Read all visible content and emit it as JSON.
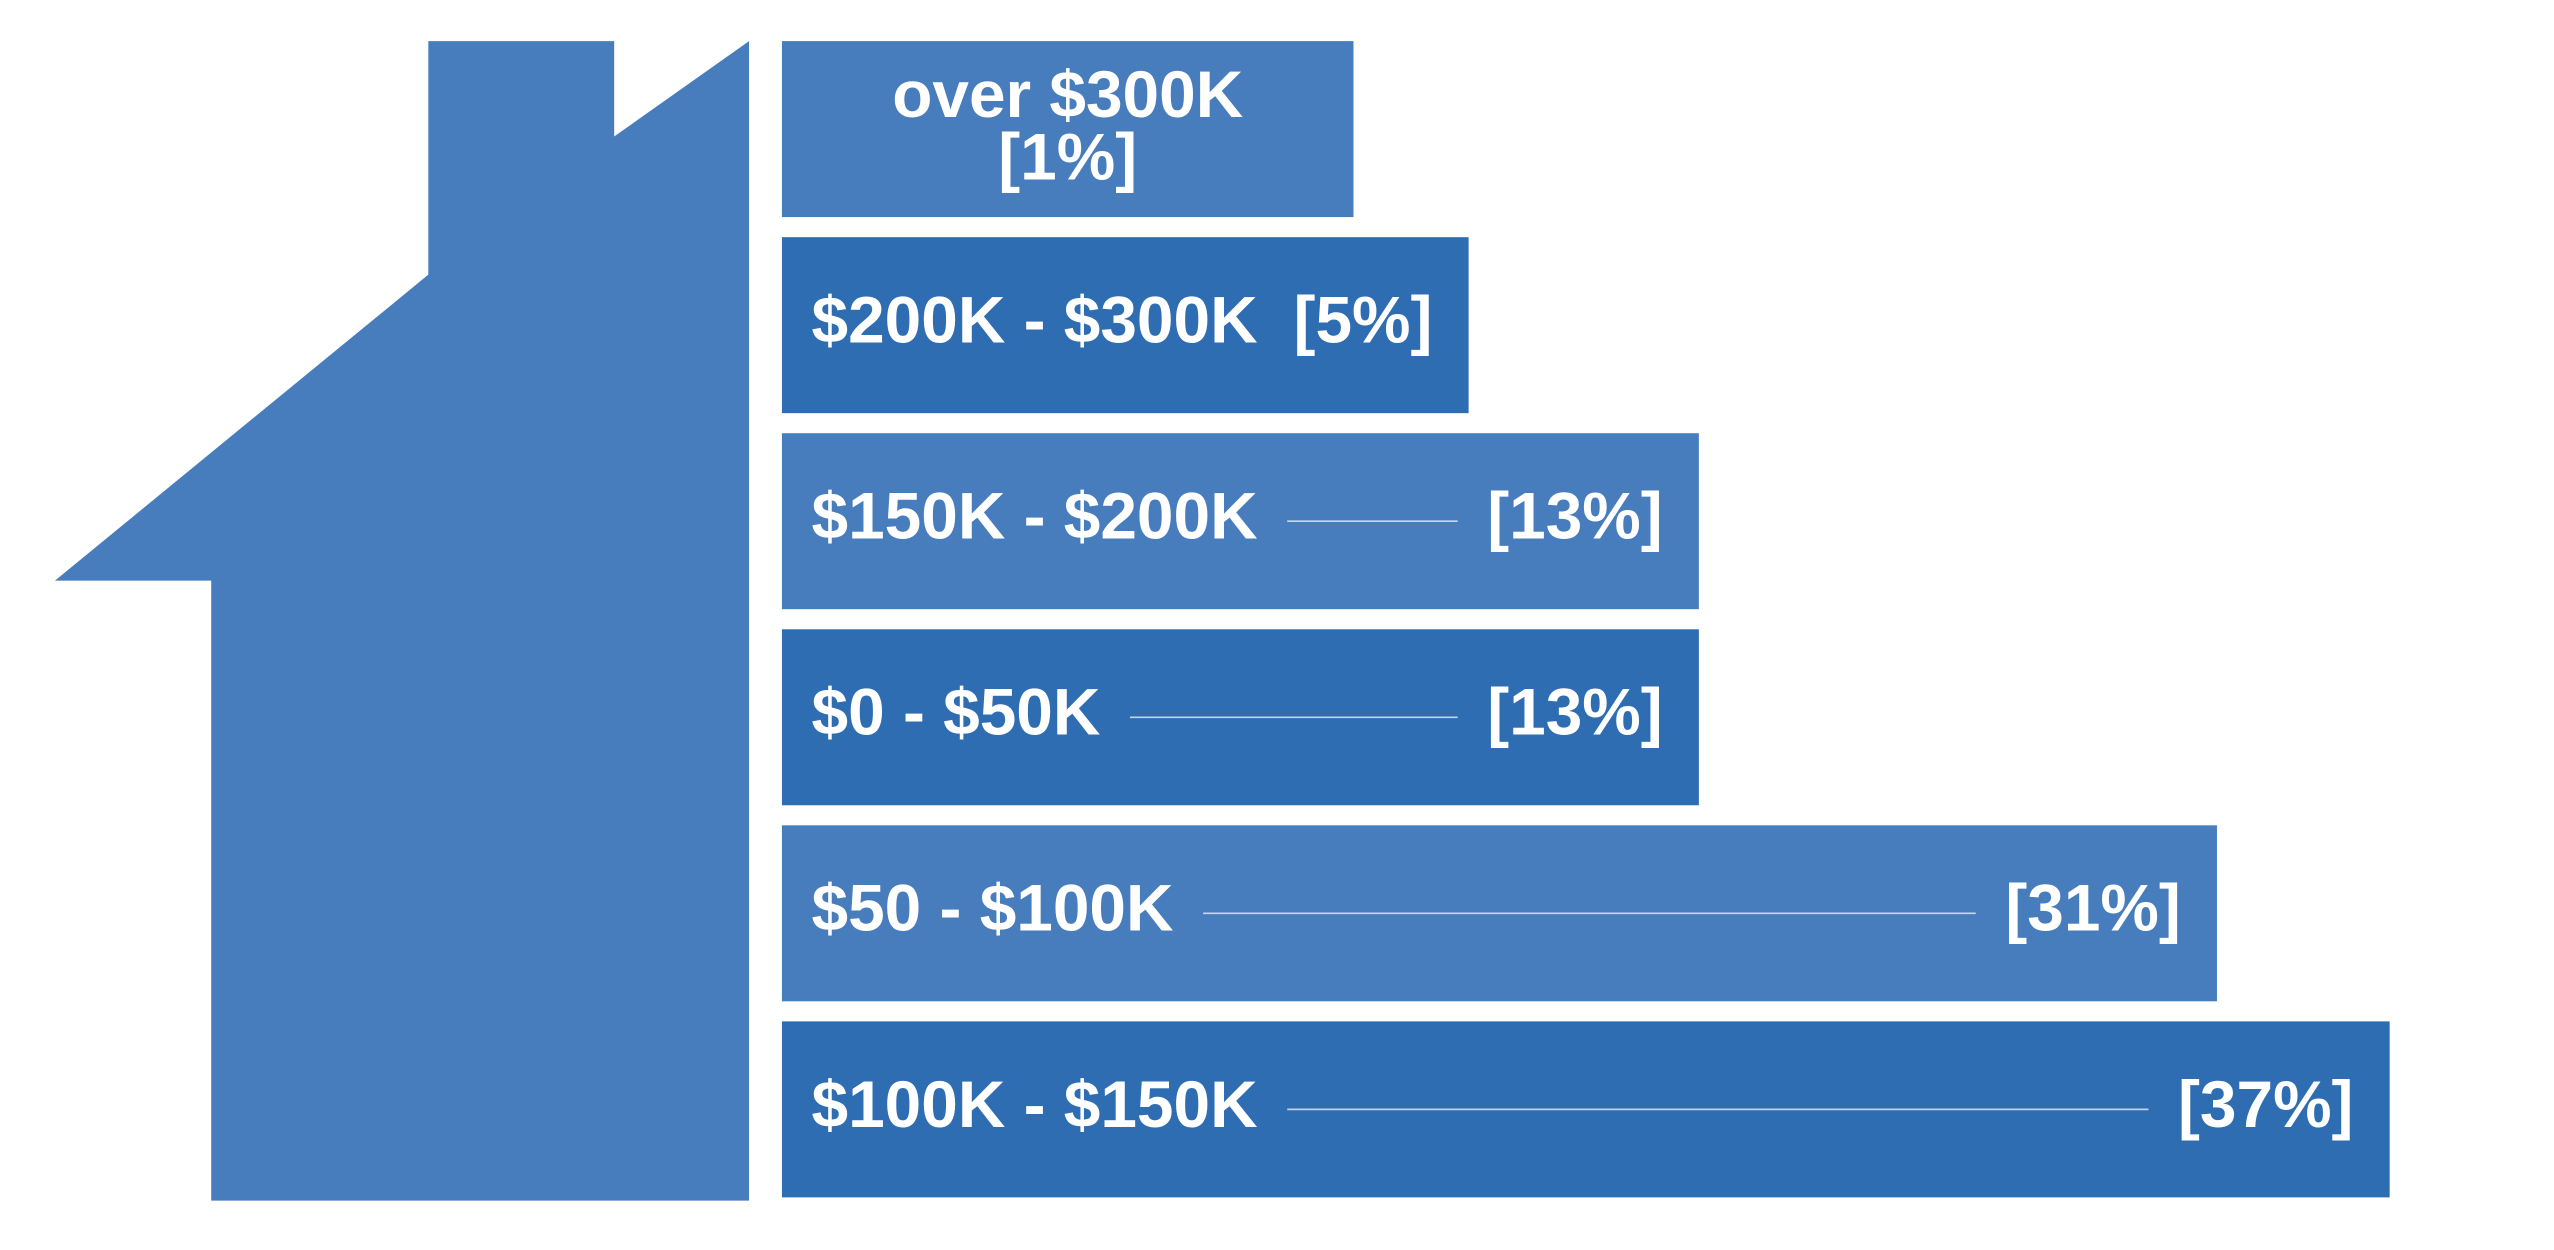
{
  "chart_data": {
    "type": "bar",
    "categories": [
      "over $300K",
      "$200K - $300K",
      "$150K - $200K",
      "$0 - $50K",
      "$50 - $100K",
      "$100K - $150K"
    ],
    "values": [
      1,
      5,
      13,
      13,
      31,
      37
    ],
    "value_labels": [
      "[1%]",
      "[5%]",
      "[13%]",
      "[13%]",
      "[31%]",
      "[37%]"
    ],
    "colors": [
      "#477dbd",
      "#2f6db3",
      "#477dbd",
      "#2f6db3",
      "#477dbd",
      "#2f6db3"
    ],
    "house_color": "#477dbd"
  }
}
